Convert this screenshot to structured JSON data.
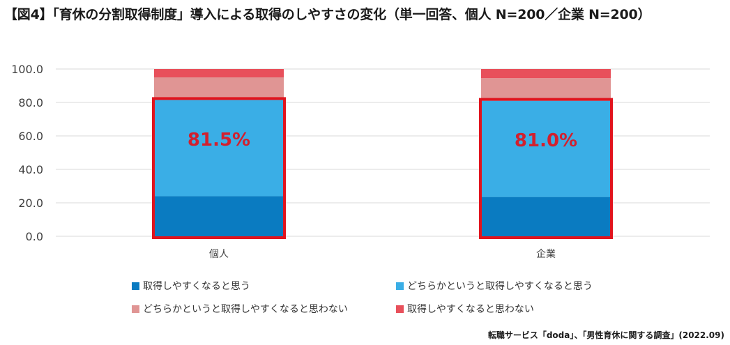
{
  "title": "【図4】「育休の分割取得制度」導入による取得のしやすさの変化（単一回答、個人 N=200／企業 N=200）",
  "source": "転職サービス「doda」、「男性育休に関する調査」(2022.09)",
  "colors": {
    "s1": "#0a7bc1",
    "s2": "#3aaee6",
    "s3": "#e09594",
    "s4": "#e8505b",
    "highlight": "#e0141e",
    "highlight_text": "#d2202e",
    "grid": "#d9d9d9"
  },
  "chart_data": {
    "type": "bar",
    "stacked": true,
    "categories": [
      "個人",
      "企業"
    ],
    "series": [
      {
        "name": "取得しやすくなると思う",
        "values": [
          24.0,
          23.5
        ]
      },
      {
        "name": "どちらかというと取得しやすくなると思う",
        "values": [
          57.5,
          57.5
        ]
      },
      {
        "name": "どちらかというと取得しやすくなると思わない",
        "values": [
          13.5,
          13.5
        ]
      },
      {
        "name": "取得しやすくなると思わない",
        "values": [
          5.0,
          5.5
        ]
      }
    ],
    "annotations": [
      "81.5%",
      "81.0%"
    ],
    "ylim": [
      0,
      100
    ],
    "yticks": [
      "0.0",
      "20.0",
      "40.0",
      "60.0",
      "80.0",
      "100.0"
    ],
    "grid": true,
    "legend_position": "bottom"
  }
}
